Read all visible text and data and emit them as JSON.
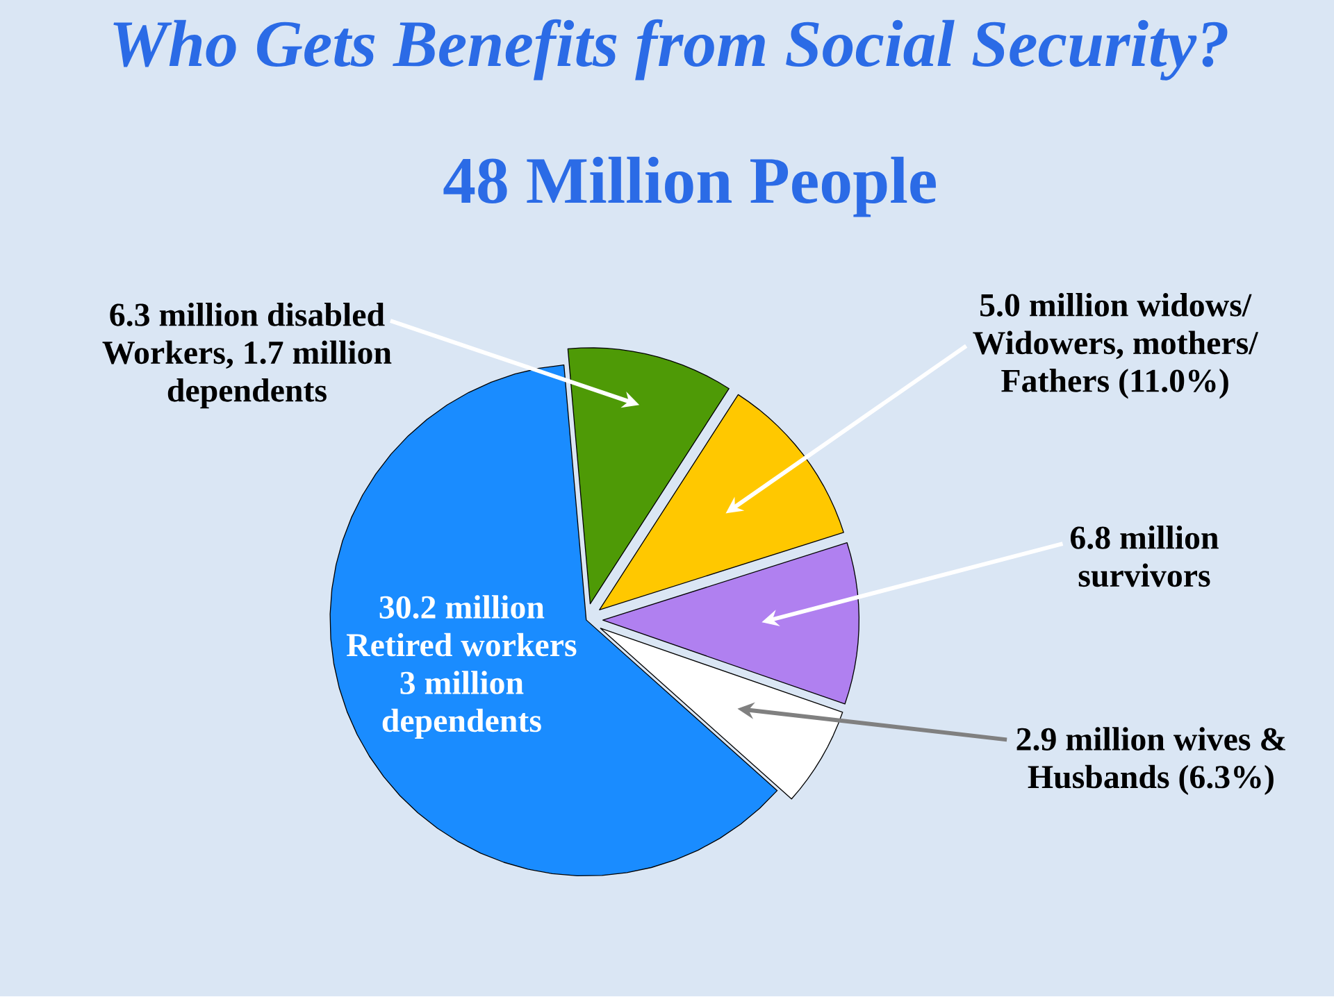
{
  "chart_data": {
    "type": "pie",
    "title": "Who Gets Benefits from Social Security?",
    "subtitle": "48 Million People",
    "categories": [
      "6.3 million disabled Workers, 1.7 million dependents",
      "5.0 million widows/ Widowers, mothers/ Fathers (11.0%)",
      "6.8 million survivors",
      "2.9 million wives & Husbands (6.3%)",
      "30.2 million Retired workers 3 million dependents"
    ],
    "values": [
      10.5,
      11.0,
      10.2,
      6.3,
      62
    ],
    "colors": [
      "#4e9a06",
      "#ffc800",
      "#b080f0",
      "#ffffff",
      "#1a8cff"
    ]
  }
}
